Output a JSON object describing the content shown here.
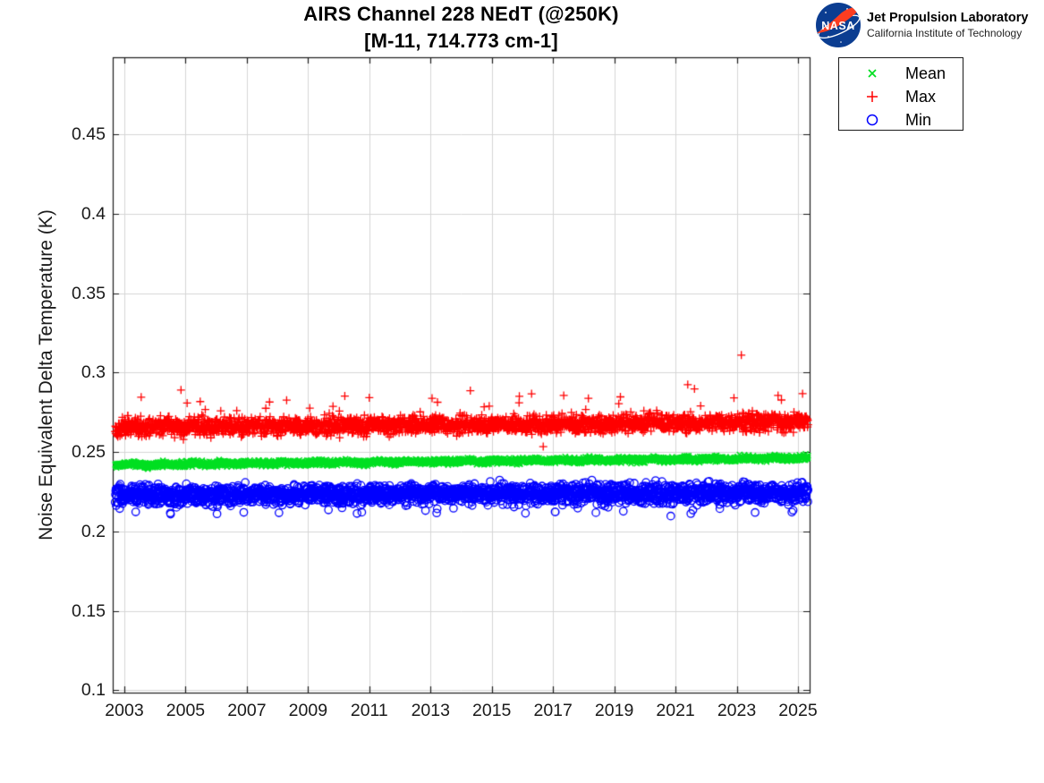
{
  "branding": {
    "nasa_logo_text": "NASA",
    "org": "Jet Propulsion Laboratory",
    "affiliation": "California Institute of Technology",
    "logo_blue": "#0B3D91",
    "logo_red": "#FC3D21"
  },
  "chart_data": {
    "type": "scatter",
    "title": "AIRS Channel 228 NEdT (@250K)",
    "subtitle": "[M-11, 714.773 cm-1]",
    "xlabel": "",
    "ylabel": "Noise Equivalent Delta Temperature (K)",
    "xlim": [
      2002.62,
      2025.38
    ],
    "ylim": [
      0.0985,
      0.4985
    ],
    "x_ticks": {
      "values": [
        2003,
        2005,
        2007,
        2009,
        2011,
        2013,
        2015,
        2017,
        2019,
        2021,
        2023,
        2025
      ],
      "labels": [
        "2003",
        "2005",
        "2007",
        "2009",
        "2011",
        "2013",
        "2015",
        "2017",
        "2019",
        "2021",
        "2023",
        "2025"
      ]
    },
    "y_ticks": {
      "values": [
        0.1,
        0.15,
        0.2,
        0.25,
        0.3,
        0.35,
        0.4,
        0.45
      ],
      "labels": [
        "0.1",
        "0.15",
        "0.2",
        "0.25",
        "0.3",
        "0.35",
        "0.4",
        "0.45"
      ]
    },
    "grid": true,
    "axis_color": "#1a1a1a",
    "grid_color": "#d6d6d6",
    "legend": {
      "position": "outside-top-right",
      "entries": [
        {
          "label": "Mean",
          "series": 0
        },
        {
          "label": "Max",
          "series": 1
        },
        {
          "label": "Min",
          "series": 2
        }
      ]
    },
    "series": [
      {
        "name": "Mean",
        "marker": "x",
        "color": "#00DF20",
        "seed": 11,
        "points": 2600,
        "x_start": 2002.7,
        "x_end": 2025.33,
        "value_start": 0.242,
        "value_end": 0.2462,
        "noise_sd": 0.0009,
        "seasonal_amplitude": 0.0004,
        "tail_prob": 0,
        "tail_sign": 0,
        "tail_min": 0,
        "tail_max": 0,
        "outliers": []
      },
      {
        "name": "Max",
        "marker": "plus",
        "color": "#FF0000",
        "seed": 22,
        "points": 2600,
        "x_start": 2002.7,
        "x_end": 2025.33,
        "value_start": 0.2656,
        "value_end": 0.2687,
        "noise_sd": 0.0027,
        "seasonal_amplitude": 0.0005,
        "tail_prob": 0.014,
        "tail_sign": 1,
        "tail_min": 0.004,
        "tail_max": 0.013,
        "outliers": [
          [
            2003.55,
            0.2845
          ],
          [
            2004.85,
            0.289
          ],
          [
            2005.05,
            0.2808
          ],
          [
            2008.3,
            0.2826
          ],
          [
            2010.2,
            0.2852
          ],
          [
            2011.0,
            0.2842
          ],
          [
            2013.05,
            0.2838
          ],
          [
            2014.3,
            0.2886
          ],
          [
            2015.9,
            0.2851
          ],
          [
            2016.3,
            0.2866
          ],
          [
            2016.68,
            0.2534
          ],
          [
            2017.35,
            0.2856
          ],
          [
            2019.2,
            0.2847
          ],
          [
            2021.4,
            0.2924
          ],
          [
            2021.62,
            0.2897
          ],
          [
            2023.15,
            0.311
          ],
          [
            2024.35,
            0.2856
          ],
          [
            2025.15,
            0.2867
          ]
        ]
      },
      {
        "name": "Min",
        "marker": "circle",
        "color": "#0000FF",
        "seed": 33,
        "points": 2600,
        "x_start": 2002.7,
        "x_end": 2025.33,
        "value_start": 0.2227,
        "value_end": 0.2243,
        "noise_sd": 0.0029,
        "seasonal_amplitude": 0.0006,
        "tail_prob": 0.022,
        "tail_sign": -1,
        "tail_min": 0.003,
        "tail_max": 0.01,
        "outliers": [
          [
            2004.5,
            0.2116
          ],
          [
            2006.9,
            0.212
          ],
          [
            2008.05,
            0.2117
          ],
          [
            2010.6,
            0.2113
          ],
          [
            2013.2,
            0.2116
          ],
          [
            2016.1,
            0.2114
          ],
          [
            2018.4,
            0.2118
          ],
          [
            2021.5,
            0.2112
          ],
          [
            2023.6,
            0.2119
          ],
          [
            2024.8,
            0.2121
          ]
        ]
      }
    ]
  }
}
